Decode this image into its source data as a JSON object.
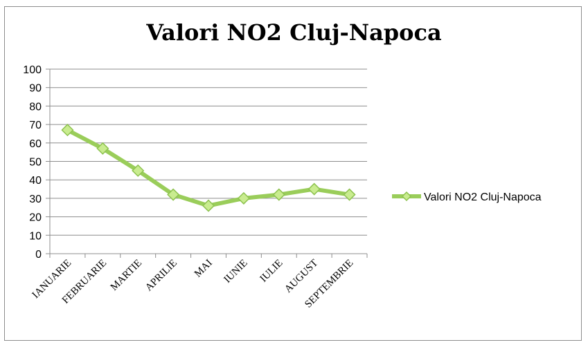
{
  "chart_data": {
    "type": "line",
    "title": "Valori NO2 Cluj-Napoca",
    "categories": [
      "IANUARIE",
      "FEBRUARIE",
      "MARTIE",
      "APRILIE",
      "MAI",
      "IUNIE",
      "IULIE",
      "AUGUST",
      "SEPTEMBRIE"
    ],
    "series": [
      {
        "name": "Valori NO2 Cluj-Napoca",
        "values": [
          67,
          57,
          45,
          32,
          26,
          30,
          32,
          35,
          32
        ]
      }
    ],
    "y_ticks": [
      "0",
      "10",
      "20",
      "30",
      "40",
      "50",
      "60",
      "70",
      "80",
      "90",
      "100"
    ],
    "ylim": [
      0,
      100
    ],
    "grid": true,
    "legend": "right",
    "colors": {
      "line": "#9acd5a",
      "marker_fill": "#c9ec8f",
      "marker_stroke": "#8dc24f",
      "grid": "#8c8c8c"
    }
  }
}
